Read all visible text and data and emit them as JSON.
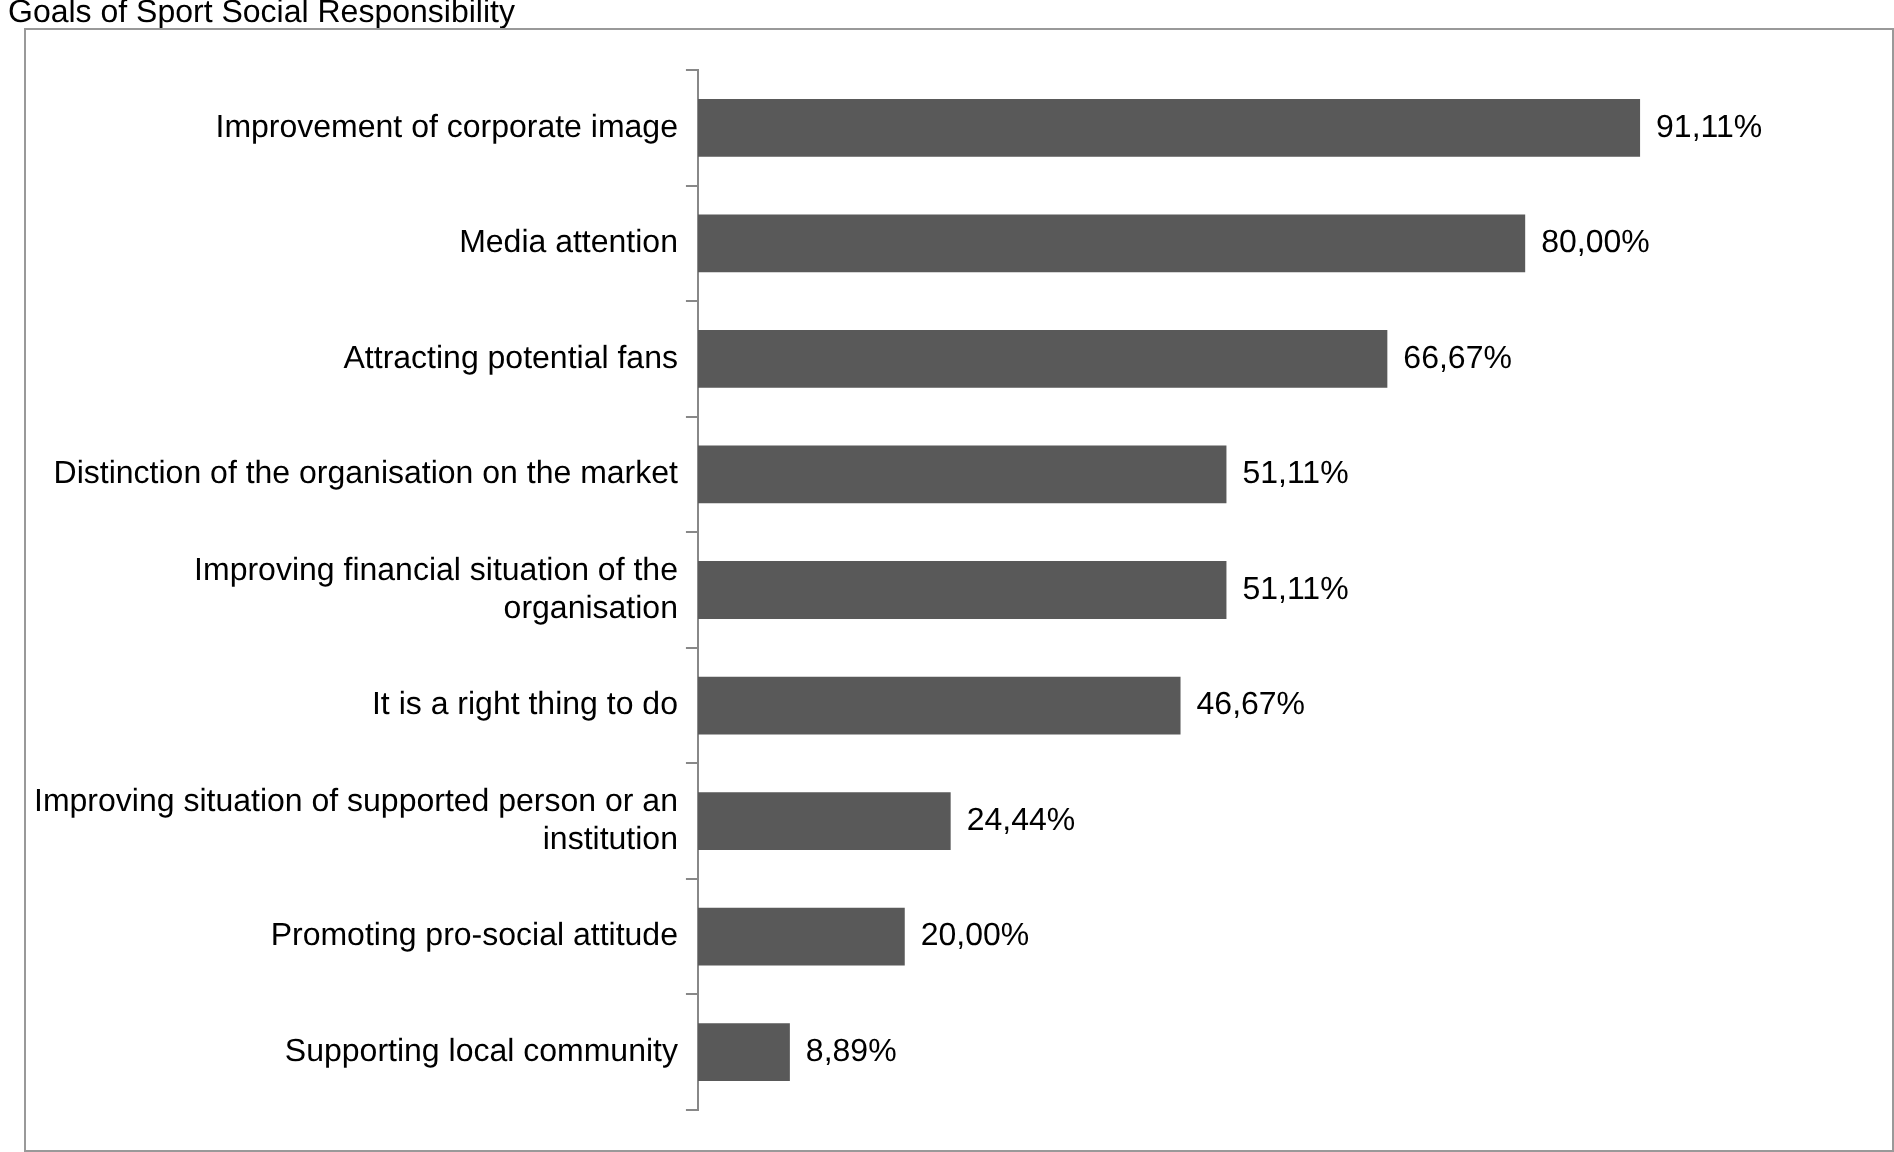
{
  "chart_data": {
    "type": "bar",
    "orientation": "horizontal",
    "title": "Goals of Sport Social Responsibility",
    "categories": [
      "Improvement of corporate image",
      "Media attention",
      "Attracting potential fans",
      "Distinction of the organisation on the market",
      "Improving financial situation of the organisation",
      "It is a right thing to do",
      "Improving situation of supported person or an institution",
      "Promoting pro-social attitude",
      "Supporting local community"
    ],
    "values": [
      91.11,
      80.0,
      66.67,
      51.11,
      51.11,
      46.67,
      24.44,
      20.0,
      8.89
    ],
    "value_labels": [
      "91,11%",
      "80,00%",
      "66,67%",
      "51,11%",
      "51,11%",
      "46,67%",
      "24,44%",
      "20,00%",
      "8,89%"
    ],
    "color": "#595959",
    "grid": false,
    "legend": false
  }
}
